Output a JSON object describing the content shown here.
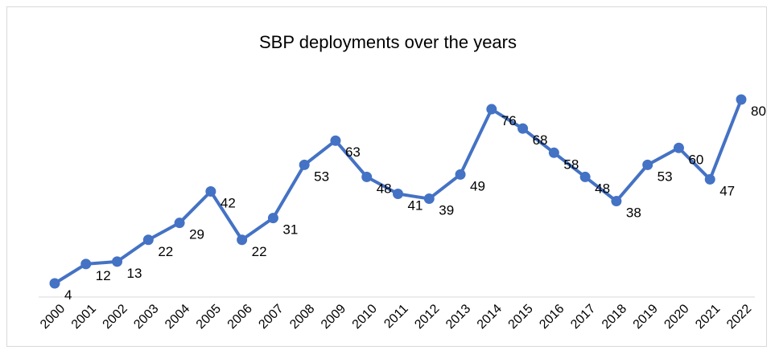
{
  "chart_data": {
    "type": "line",
    "title": "SBP deployments over the years",
    "xlabel": "",
    "ylabel": "",
    "categories": [
      "2000",
      "2001",
      "2002",
      "2003",
      "2004",
      "2005",
      "2006",
      "2007",
      "2008",
      "2009",
      "2010",
      "2011",
      "2012",
      "2013",
      "2014",
      "2015",
      "2016",
      "2017",
      "2018",
      "2019",
      "2020",
      "2021",
      "2022"
    ],
    "series": [
      {
        "values": [
          4,
          12,
          13,
          22,
          29,
          42,
          22,
          31,
          53,
          63,
          48,
          41,
          39,
          49,
          76,
          68,
          58,
          48,
          38,
          53,
          60,
          47,
          80
        ],
        "data_labels": [
          "4",
          "12",
          "13",
          "22",
          "29",
          "42",
          "22",
          "31",
          "53",
          "63",
          "48",
          "41",
          "39",
          "49",
          "76",
          "68",
          "58",
          "48",
          "38",
          "53",
          "60",
          "47",
          "80"
        ]
      }
    ],
    "ylim": [
      0,
      85
    ],
    "grid": false,
    "legend": "none",
    "colors": {
      "line": "#4472C4",
      "marker": "#4472C4",
      "axis": "#d9d9d9"
    }
  }
}
